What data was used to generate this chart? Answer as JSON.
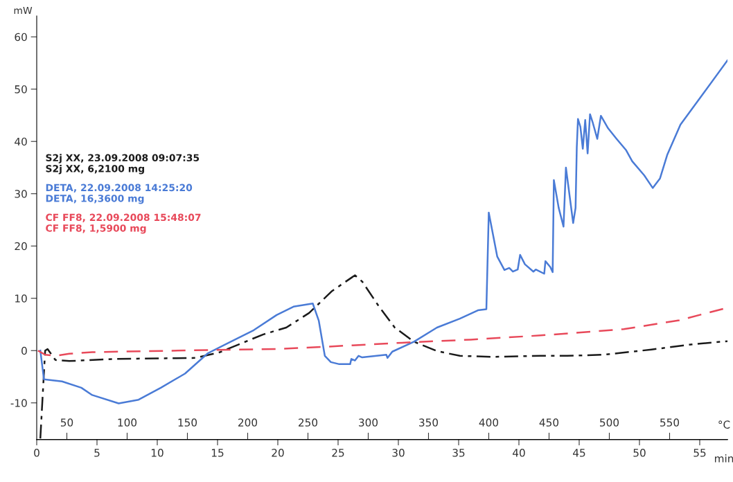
{
  "chart_data": {
    "type": "line",
    "ylabel": "mW",
    "xlabel": "min",
    "x2label": "°C",
    "xlim": [
      0,
      57.3
    ],
    "xticks": [
      0,
      5,
      10,
      15,
      20,
      25,
      30,
      35,
      40,
      45,
      50,
      55
    ],
    "x2lim": [
      25,
      598
    ],
    "x2ticks": [
      50,
      100,
      150,
      200,
      250,
      300,
      350,
      400,
      450,
      500,
      550
    ],
    "ylim": [
      -17,
      64
    ],
    "yticks": [
      -10,
      0,
      10,
      20,
      30,
      40,
      50,
      60
    ],
    "grid": false,
    "legend": "left",
    "marker": "none",
    "series": [
      {
        "name": "S2j XX, 23.09.2008 09:07:35\nS2j XX, 6,2100 mg",
        "color": "#1a1a1a",
        "line_style": "dashdot",
        "x": [
          0.3,
          0.7,
          0.9,
          1.55,
          2.7,
          6.55,
          13.2,
          15.2,
          17.1,
          18.8,
          20.7,
          22.6,
          24.5,
          26.4,
          27.0,
          28.4,
          29.7,
          31.3,
          33.2,
          35.1,
          37.9,
          41.8,
          44.0,
          47.0,
          51.0,
          54.4,
          57.3
        ],
        "values": [
          -16.8,
          0.0,
          0.3,
          -1.8,
          -2.0,
          -1.6,
          -1.4,
          -0.3,
          1.5,
          3.1,
          4.4,
          7.2,
          11.4,
          14.4,
          13.2,
          8.4,
          4.4,
          1.7,
          -0.1,
          -1.0,
          -1.2,
          -1.0,
          -1.0,
          -0.8,
          0.2,
          1.2,
          1.8
        ]
      },
      {
        "name": "DETA, 22.09.2008 14:25:20\nDETA, 16,3600 mg",
        "color": "#4a7bd6",
        "line_style": "solid",
        "x": [
          0.3,
          0.6,
          2.1,
          3.7,
          4.6,
          6.8,
          8.45,
          10.3,
          12.3,
          14.2,
          16.1,
          18.0,
          19.9,
          21.3,
          22.9,
          23.4,
          23.9,
          24.4,
          25.1,
          26.0,
          26.1,
          26.4,
          26.7,
          27.0,
          29.0,
          29.1,
          29.5,
          31.3,
          33.2,
          35.1,
          36.6,
          37.3,
          37.5,
          38.2,
          38.8,
          39.2,
          39.5,
          39.9,
          40.1,
          40.5,
          41.2,
          41.4,
          42.1,
          42.2,
          42.6,
          42.8,
          42.9,
          43.3,
          43.7,
          43.9,
          44.5,
          44.7,
          44.8,
          44.9,
          45.1,
          45.3,
          45.5,
          45.7,
          45.9,
          46.1,
          46.5,
          46.8,
          47.4,
          48.1,
          48.9,
          49.4,
          50.4,
          51.1,
          51.7,
          52.3,
          53.4,
          55.4,
          57.3
        ],
        "values": [
          0.0,
          -5.5,
          -5.9,
          -7.1,
          -8.5,
          -10.1,
          -9.4,
          -7.1,
          -4.4,
          -0.5,
          1.7,
          3.9,
          6.8,
          8.4,
          9.0,
          5.7,
          -1.0,
          -2.2,
          -2.6,
          -2.6,
          -1.6,
          -1.9,
          -1.0,
          -1.3,
          -0.8,
          -1.4,
          -0.2,
          1.7,
          4.4,
          6.1,
          7.7,
          7.9,
          26.4,
          18.0,
          15.4,
          15.8,
          15.1,
          15.5,
          18.3,
          16.5,
          15.1,
          15.5,
          14.7,
          17.1,
          16.0,
          15.0,
          32.6,
          27.3,
          23.7,
          35.0,
          24.4,
          27.3,
          38.8,
          44.3,
          42.8,
          38.6,
          44.1,
          37.7,
          45.2,
          43.8,
          40.5,
          44.9,
          42.5,
          40.5,
          38.3,
          36.2,
          33.5,
          31.1,
          32.9,
          37.4,
          43.2,
          49.5,
          55.5
        ]
      },
      {
        "name": "CF FF8, 22.09.2008 15:48:07\nCF FF8, 1,5900 mg",
        "color": "#e8495a",
        "line_style": "dashed",
        "x": [
          0.1,
          0.7,
          1.6,
          2.7,
          4.6,
          14.2,
          19.9,
          24.5,
          30.3,
          36.0,
          41.8,
          48.7,
          53.3,
          57.3
        ],
        "values": [
          0.0,
          -0.8,
          -1.0,
          -0.6,
          -0.3,
          0.1,
          0.3,
          0.8,
          1.5,
          2.1,
          2.9,
          4.1,
          5.8,
          8.2
        ]
      }
    ]
  }
}
